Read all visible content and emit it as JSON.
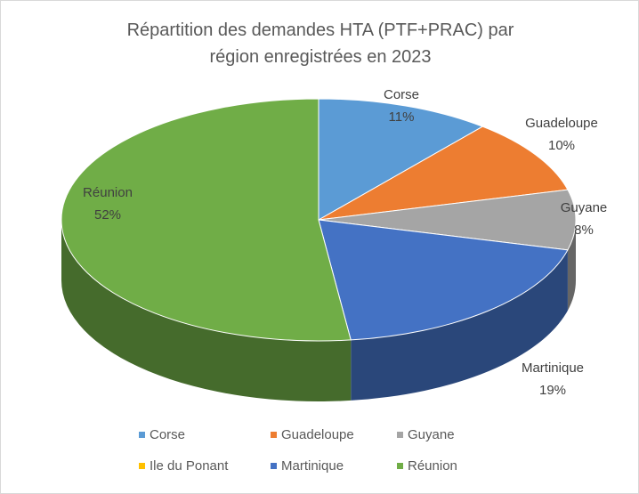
{
  "chart_data": {
    "type": "pie3d",
    "title": "Répartition des demandes HTA (PTF+PRAC) par région enregistrées en 2023",
    "categories": [
      "Corse",
      "Guadeloupe",
      "Guyane",
      "Ile du Ponant",
      "Martinique",
      "Réunion"
    ],
    "values": [
      11,
      10,
      8,
      0,
      19,
      52
    ],
    "value_labels": [
      "11%",
      "10%",
      "8%",
      null,
      "19%",
      "52%"
    ],
    "colors": [
      "#5b9bd5",
      "#ed7d31",
      "#a5a5a5",
      "#ffc000",
      "#4472c4",
      "#70ad47"
    ],
    "legend": "bottom"
  }
}
